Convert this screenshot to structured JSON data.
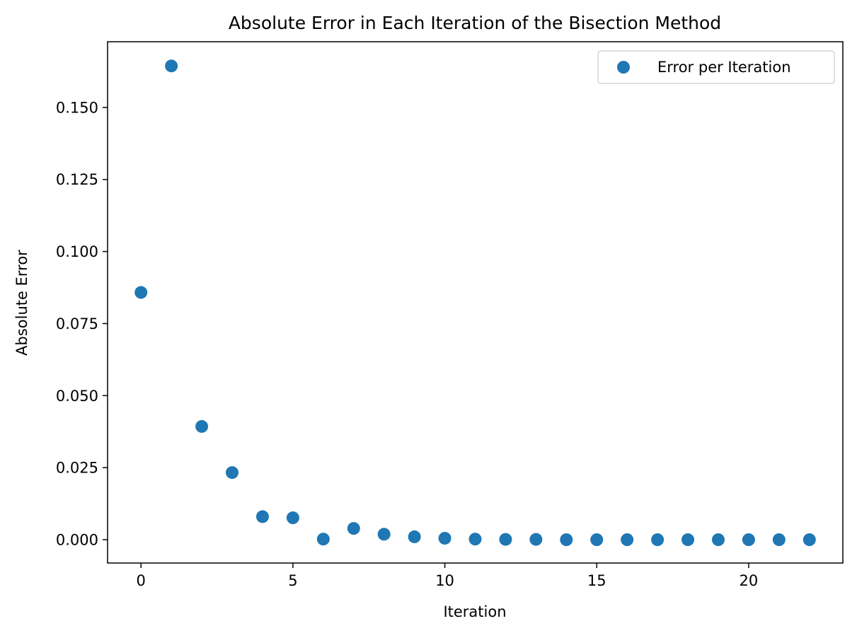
{
  "chart_data": {
    "type": "scatter",
    "title": "Absolute Error in Each Iteration of the Bisection Method",
    "xlabel": "Iteration",
    "ylabel": "Absolute Error",
    "xlim": [
      -1.1,
      23.1
    ],
    "ylim": [
      -0.0081,
      0.1728
    ],
    "x_ticks": [
      0,
      5,
      10,
      15,
      20
    ],
    "x_tick_labels": [
      "0",
      "5",
      "10",
      "15",
      "20"
    ],
    "y_ticks": [
      0.0,
      0.025,
      0.05,
      0.075,
      0.1,
      0.125,
      0.15
    ],
    "y_tick_labels": [
      "0.000",
      "0.025",
      "0.050",
      "0.075",
      "0.100",
      "0.125",
      "0.150"
    ],
    "grid": false,
    "legend": {
      "placement": "upper-right",
      "entries": [
        "Error per Iteration"
      ]
    },
    "series": [
      {
        "name": "Error per Iteration",
        "color": "#1f77b4",
        "x": [
          0,
          1,
          2,
          3,
          4,
          5,
          6,
          7,
          8,
          9,
          10,
          11,
          12,
          13,
          14,
          15,
          16,
          17,
          18,
          19,
          20,
          21,
          22
        ],
        "y": [
          0.0858,
          0.1644,
          0.0393,
          0.0233,
          0.008,
          0.0076,
          0.0002,
          0.0039,
          0.0019,
          0.001,
          0.0005,
          0.0002,
          0.0001,
          0.0001,
          0.0,
          0.0,
          0.0,
          0.0,
          0.0,
          0.0,
          0.0,
          0.0,
          0.0
        ]
      }
    ]
  }
}
